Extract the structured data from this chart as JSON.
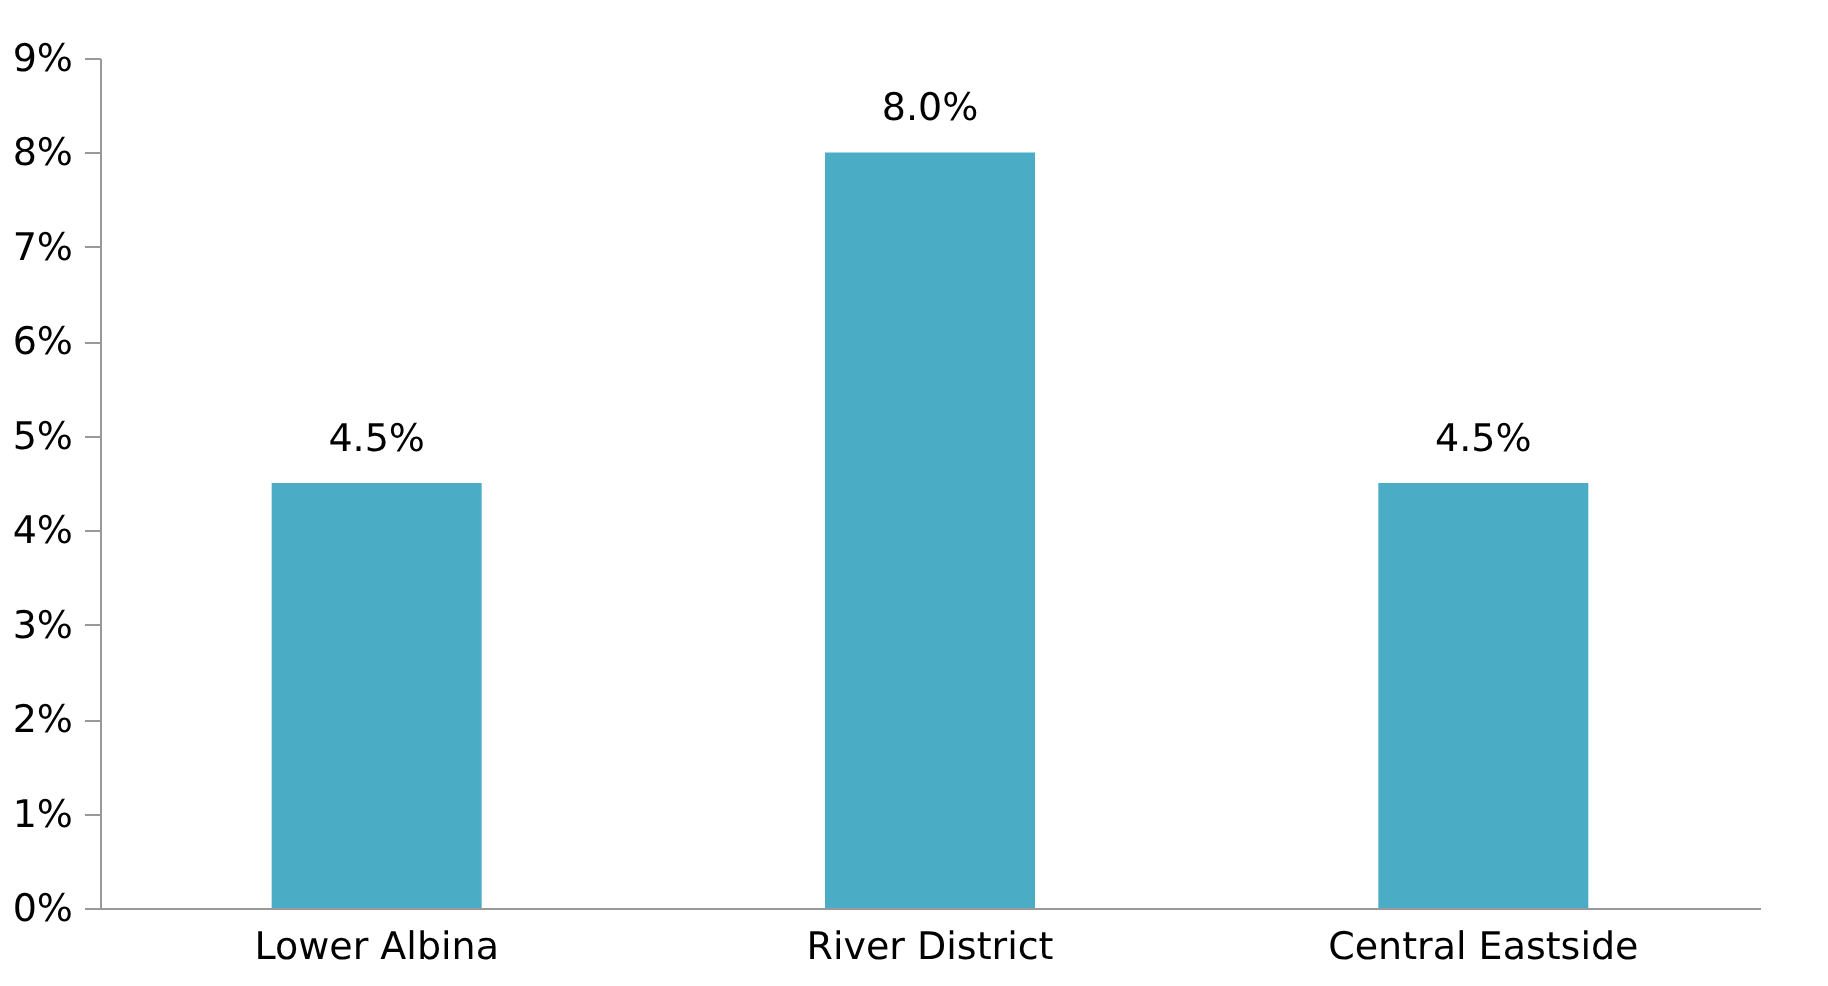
{
  "chart_data": {
    "type": "bar",
    "categories": [
      "Lower Albina",
      "River District",
      "Central Eastside"
    ],
    "values": [
      4.5,
      8.0,
      4.5
    ],
    "value_labels": [
      "4.5%",
      "8.0%",
      "4.5%"
    ],
    "color": "#4bacc6",
    "ylim": [
      0,
      9
    ],
    "yticks": [
      {
        "value": 0,
        "label": "0%"
      },
      {
        "value": 1,
        "label": "1%"
      },
      {
        "value": 2,
        "label": "2%"
      },
      {
        "value": 3,
        "label": "3%"
      },
      {
        "value": 4,
        "label": "4%"
      },
      {
        "value": 5,
        "label": "5%"
      },
      {
        "value": 6,
        "label": "6%"
      },
      {
        "value": 7,
        "label": "7%"
      },
      {
        "value": 8,
        "label": "8%"
      },
      {
        "value": 9,
        "label": "9%"
      }
    ],
    "grid": false
  }
}
